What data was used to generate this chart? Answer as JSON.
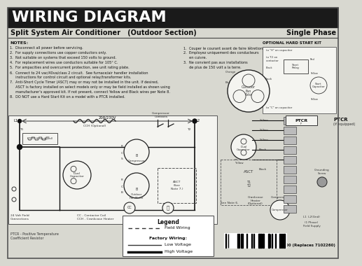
{
  "title": "WIRING DIAGRAM",
  "subtitle_left": "Split System Air Conditioner   (Outdoor Section)",
  "subtitle_right": "Single Phase",
  "title_bg": "#1a1a1a",
  "title_fg": "#ffffff",
  "body_bg": "#d8d8d0",
  "notes_en": [
    "NOTES:",
    "1.  Disconnect all power before servicing.",
    "2.  For supply connections use copper conductors only.",
    "3.  Not suitable on systems that exceed 150 volts to ground.",
    "4.  For replacement wires use conductors suitable for 105° C.",
    "5.  For ampacities and overcurrent protection, see unit rating plate.",
    "6.  Connect to 24 vac/40va/class 2 circuit.  See furnace/air handler installation",
    "     instructions for control circuit and optional relay/transformer kits.",
    "7.  Anti-Short Cycle Timer (ASCT) may or may not be installed in the unit. If desired,",
    "     ASCT is factory installed on select models only or may be field installed as shown using",
    "     manufacturer's approved kit. If not present, connect Yellow and Black wires per Note 8.",
    "8.  DO NOT use a Hard Start Kit on a model with a PTCR installed."
  ],
  "notes_fr": [
    "1.  Couper le courant avant de faire létretion.",
    "2.  Employez uniquement des conducteurs",
    "     en cuivre.",
    "3.  Ne convient pas aux installations",
    "     de plus de 150 volt a la terre."
  ],
  "optional_label": "OPTIONAL HARD START KIT",
  "ptcr_label": "PTCR - Positive Temperature\nCoefficient Resistor",
  "part_number": "7105700 (Replaces 7102260)",
  "footer_labels": [
    "24 Volt Field\nConnections",
    "CC - Contactor Coil\nCCH - Crankcase Heater"
  ],
  "legend_label": "Legend",
  "legend_field": "Field Wiring",
  "legend_factory": "Factory Wiring:",
  "legend_low": "Low Voltage",
  "legend_high": "High Voltage",
  "bg_white": "#f4f4f0",
  "lw_high": 1.5,
  "lw_low": 0.8,
  "lw_field": 0.8
}
